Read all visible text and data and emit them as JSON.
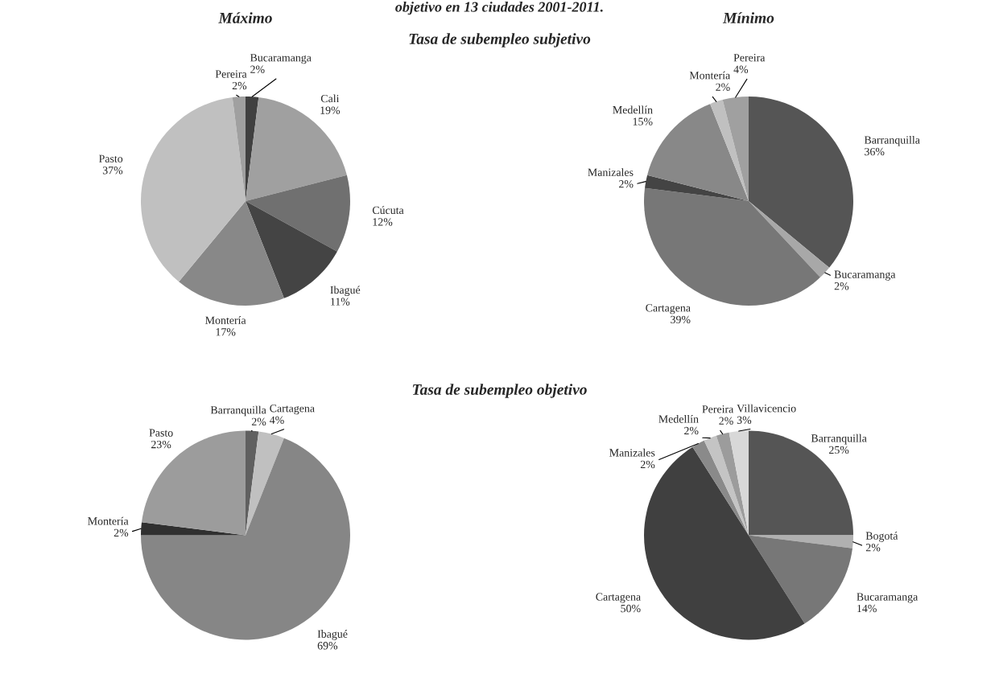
{
  "chart_data": [
    {
      "type": "pie",
      "title": "Tasa de subempleo subjetivo",
      "subtitle": "Máximo",
      "annotations": [
        "objetivo en 13 ciudades 2001-2011."
      ],
      "categories": [
        "Bucaramanga",
        "Cali",
        "Cúcuta",
        "Ibagué",
        "Montería",
        "Pasto",
        "Pereira"
      ],
      "values": [
        2,
        19,
        12,
        11,
        17,
        37,
        2
      ],
      "value_labels": [
        "2%",
        "19%",
        "12%",
        "11%",
        "17%",
        "37%",
        "2%"
      ],
      "colors": [
        "#404040",
        "#a0a0a0",
        "#707070",
        "#444444",
        "#888888",
        "#c0c0c0",
        "#a0a0a0"
      ]
    },
    {
      "type": "pie",
      "subtitle": "Mínimo",
      "categories": [
        "Barranquilla",
        "Bucaramanga",
        "Cartagena",
        "Manizales",
        "Medellín",
        "Montería",
        "Pereira"
      ],
      "values": [
        36,
        2,
        39,
        2,
        15,
        2,
        4
      ],
      "value_labels": [
        "36%",
        "2%",
        "39%",
        "2%",
        "15%",
        "2%",
        "4%"
      ],
      "colors": [
        "#555555",
        "#a8a8a8",
        "#777777",
        "#444444",
        "#888888",
        "#c0c0c0",
        "#a0a0a0"
      ]
    },
    {
      "type": "pie",
      "title": "Tasa de subempleo objetivo",
      "categories": [
        "Barranquilla",
        "Cartagena",
        "Ibagué",
        "Montería",
        "Pasto"
      ],
      "values": [
        2,
        4,
        69,
        2,
        23
      ],
      "value_labels": [
        "2%",
        "4%",
        "69%",
        "2%",
        "23%"
      ],
      "colors": [
        "#606060",
        "#c0c0c0",
        "#868686",
        "#303030",
        "#9c9c9c"
      ]
    },
    {
      "type": "pie",
      "categories": [
        "Barranquilla",
        "Bogotá",
        "Bucaramanga",
        "Cartagena",
        "Manizales",
        "Medellín",
        "Pereira",
        "Villavicencio"
      ],
      "values": [
        25,
        2,
        14,
        50,
        2,
        2,
        2,
        3
      ],
      "value_labels": [
        "25%",
        "2%",
        "14%",
        "50%",
        "2%",
        "2%",
        "2%",
        "3%"
      ],
      "colors": [
        "#555555",
        "#b0b0b0",
        "#777777",
        "#404040",
        "#8a8a8a",
        "#c4c4c4",
        "#9c9c9c",
        "#d8d8d8"
      ]
    }
  ]
}
